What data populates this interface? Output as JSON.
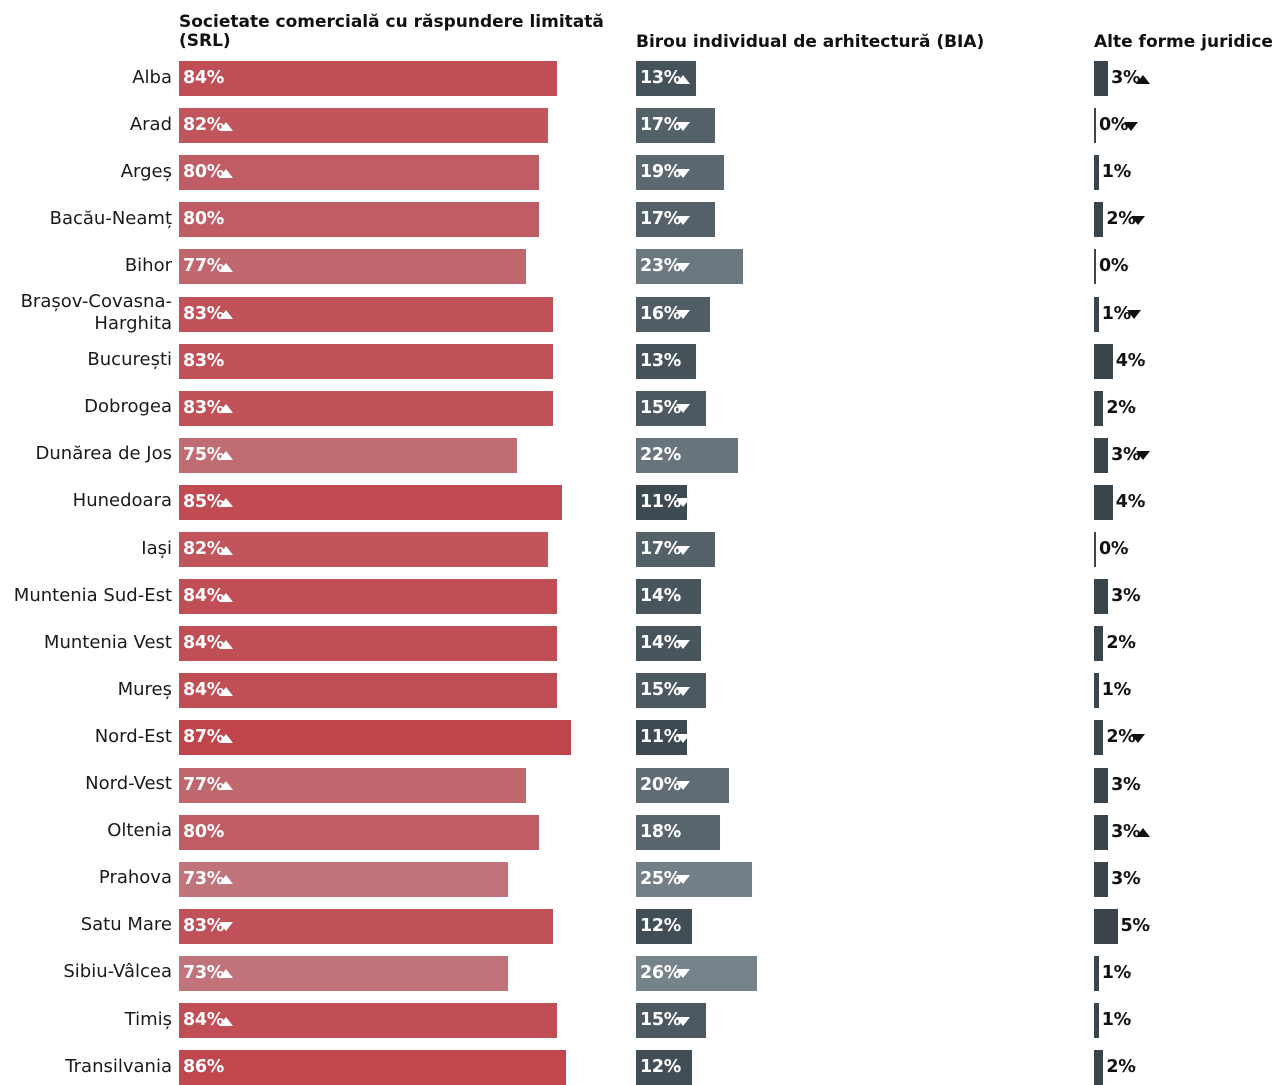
{
  "chart_data": {
    "type": "bar",
    "layout": "small-multiples-horizontal",
    "categories": [
      "Alba",
      "Arad",
      "Argeș",
      "Bacău-Neamț",
      "Bihor",
      "Brașov-Covasna-\nHarghita",
      "București",
      "Dobrogea",
      "Dunărea de Jos",
      "Hunedoara",
      "Iași",
      "Muntenia Sud-Est",
      "Muntenia Vest",
      "Mureș",
      "Nord-Est",
      "Nord-Vest",
      "Oltenia",
      "Prahova",
      "Satu Mare",
      "Sibiu-Vâlcea",
      "Timiș",
      "Transilvania"
    ],
    "series": [
      {
        "name": "Societate comercială cu răspundere limitată (SRL)",
        "title_lines": [
          "Societate comercială cu răspundere limitată",
          "(SRL)"
        ],
        "unit": "%",
        "values": [
          84,
          82,
          80,
          80,
          77,
          83,
          83,
          83,
          75,
          85,
          82,
          84,
          84,
          84,
          87,
          77,
          80,
          73,
          83,
          73,
          84,
          86
        ],
        "trends": [
          "-",
          "up",
          "up",
          "-",
          "up",
          "up",
          "-",
          "up",
          "up",
          "up",
          "up",
          "up",
          "up",
          "up",
          "up",
          "up",
          "-",
          "up",
          "down",
          "up",
          "up",
          "-"
        ],
        "color_scale": [
          "#c0737a",
          "#c0444b"
        ]
      },
      {
        "name": "Birou individual de arhitectură (BIA)",
        "title_lines": [
          "Birou individual de arhitectură (BIA)"
        ],
        "unit": "%",
        "values": [
          13,
          17,
          19,
          17,
          23,
          16,
          13,
          15,
          22,
          11,
          17,
          14,
          14,
          15,
          11,
          20,
          18,
          25,
          12,
          26,
          15,
          12
        ],
        "trends": [
          "up",
          "down",
          "down",
          "down",
          "down",
          "down",
          "-",
          "down",
          "-",
          "down",
          "down",
          "-",
          "down",
          "down",
          "down",
          "down",
          "-",
          "down",
          "",
          "down",
          "down",
          "-"
        ],
        "color_scale": [
          "#3e4a52",
          "#76838b"
        ]
      },
      {
        "name": "Alte forme juridice",
        "title_lines": [
          "Alte forme juridice"
        ],
        "unit": "%",
        "values": [
          3,
          0,
          1,
          2,
          0,
          1,
          4,
          2,
          3,
          4,
          0,
          3,
          2,
          1,
          2,
          3,
          3,
          3,
          5,
          1,
          1,
          2
        ],
        "trends": [
          "up",
          "down",
          "-",
          "down",
          "-",
          "down",
          "-",
          "-",
          "down",
          "-",
          "-",
          "-",
          "-",
          "-",
          "down",
          "-",
          "up",
          "-",
          "-",
          "-",
          "-",
          "-"
        ],
        "color_scale": [
          "#3a444b",
          "#3a444b"
        ]
      }
    ],
    "xlim": [
      0,
      100
    ],
    "legend": "none",
    "grid": false
  }
}
